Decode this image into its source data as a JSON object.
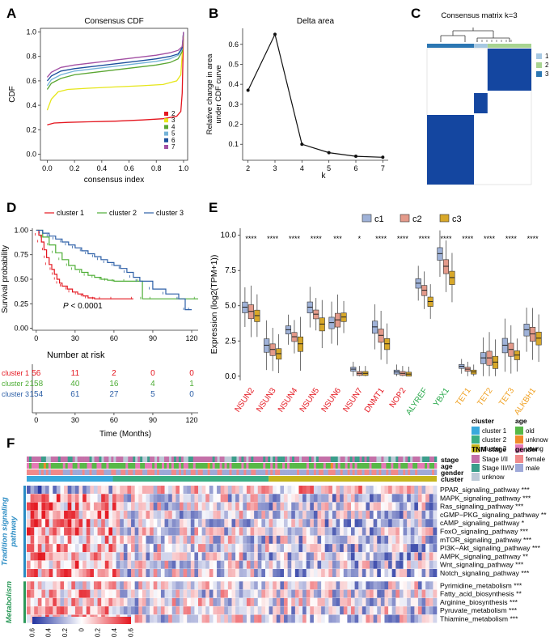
{
  "chart_data": [
    {
      "panel": "A",
      "type": "line",
      "title": "Consensus CDF",
      "xlabel": "consensus index",
      "ylabel": "CDF",
      "xlim": [
        0,
        1
      ],
      "ylim": [
        0,
        1
      ],
      "xticks": [
        "0.0",
        "0.2",
        "0.4",
        "0.6",
        "0.8",
        "1.0"
      ],
      "yticks": [
        "0.0",
        "0.2",
        "0.4",
        "0.6",
        "0.8",
        "1.0"
      ],
      "series": [
        {
          "name": "2",
          "color": "#e4161f",
          "x": [
            0,
            0.05,
            0.15,
            0.3,
            0.5,
            0.7,
            0.85,
            0.95,
            0.98,
            0.99,
            1.0
          ],
          "y": [
            0.24,
            0.255,
            0.26,
            0.265,
            0.27,
            0.28,
            0.29,
            0.31,
            0.35,
            0.5,
            1.0
          ]
        },
        {
          "name": "3",
          "color": "#e6e61a",
          "x": [
            0,
            0.03,
            0.08,
            0.15,
            0.3,
            0.5,
            0.7,
            0.85,
            0.95,
            0.98,
            1.0
          ],
          "y": [
            0.36,
            0.45,
            0.51,
            0.53,
            0.54,
            0.55,
            0.56,
            0.57,
            0.6,
            0.65,
            0.98
          ]
        },
        {
          "name": "4",
          "color": "#5aa632",
          "x": [
            0,
            0.03,
            0.1,
            0.2,
            0.35,
            0.5,
            0.65,
            0.8,
            0.9,
            0.96,
            0.99,
            1.0
          ],
          "y": [
            0.53,
            0.58,
            0.62,
            0.65,
            0.67,
            0.69,
            0.71,
            0.73,
            0.75,
            0.78,
            0.84,
            1.0
          ]
        },
        {
          "name": "5",
          "color": "#74b3d8",
          "x": [
            0,
            0.03,
            0.1,
            0.2,
            0.35,
            0.5,
            0.65,
            0.8,
            0.9,
            0.96,
            0.99,
            1.0
          ],
          "y": [
            0.56,
            0.61,
            0.65,
            0.68,
            0.7,
            0.72,
            0.74,
            0.76,
            0.78,
            0.81,
            0.86,
            1.0
          ]
        },
        {
          "name": "6",
          "color": "#1c4f9c",
          "x": [
            0,
            0.03,
            0.1,
            0.2,
            0.35,
            0.5,
            0.65,
            0.8,
            0.9,
            0.96,
            0.99,
            1.0
          ],
          "y": [
            0.6,
            0.64,
            0.68,
            0.7,
            0.72,
            0.74,
            0.76,
            0.78,
            0.8,
            0.82,
            0.87,
            1.0
          ]
        },
        {
          "name": "7",
          "color": "#a24fa3",
          "x": [
            0,
            0.03,
            0.1,
            0.2,
            0.35,
            0.5,
            0.65,
            0.8,
            0.9,
            0.96,
            0.99,
            1.0
          ],
          "y": [
            0.63,
            0.67,
            0.71,
            0.73,
            0.75,
            0.77,
            0.79,
            0.81,
            0.83,
            0.85,
            0.88,
            1.0
          ]
        }
      ]
    },
    {
      "panel": "B",
      "type": "line",
      "title": "Delta area",
      "xlabel": "k",
      "ylabel_lines": [
        "Relative change in area",
        "under CDF curve"
      ],
      "x": [
        2,
        3,
        4,
        5,
        6,
        7
      ],
      "y": [
        0.37,
        0.65,
        0.1,
        0.058,
        0.04,
        0.035
      ],
      "xlim": [
        1.8,
        7.2
      ],
      "ylim": [
        0.02,
        0.68
      ],
      "xticks": [
        "2",
        "3",
        "4",
        "5",
        "6",
        "7"
      ],
      "yticks": [
        "0.1",
        "0.2",
        "0.3",
        "0.4",
        "0.5",
        "0.6"
      ]
    },
    {
      "panel": "C",
      "type": "heatmap",
      "title": "Consensus matrix k=3",
      "legend": [
        {
          "name": "1",
          "color": "#a6c8e2"
        },
        {
          "name": "2",
          "color": "#a8d491"
        },
        {
          "name": "3",
          "color": "#2b76b2"
        }
      ],
      "block_color": "#1446a0",
      "annotation_bar": [
        {
          "cluster": "3",
          "frac": 0.45
        },
        {
          "cluster": "1",
          "frac": 0.13
        },
        {
          "cluster": "2",
          "frac": 0.42
        }
      ]
    },
    {
      "panel": "D",
      "type": "line",
      "subtype": "kaplan-meier",
      "ylabel": "Survival probability",
      "xlabel": "Time (Months)",
      "xlim": [
        0,
        125
      ],
      "ylim": [
        0,
        1
      ],
      "xticks": [
        "0",
        "30",
        "60",
        "90",
        "120"
      ],
      "yticks": [
        "0.00",
        "0.25",
        "0.50",
        "0.75",
        "1.00"
      ],
      "pvalue_label": "P",
      "pvalue_text": " < 0.0001",
      "series": [
        {
          "name": "cluster 1",
          "color": "#e4161f",
          "x": [
            0,
            2,
            4,
            6,
            8,
            10,
            12,
            14,
            16,
            18,
            20,
            24,
            28,
            32,
            36,
            40,
            45,
            50,
            60,
            75
          ],
          "y": [
            1,
            0.95,
            0.88,
            0.8,
            0.72,
            0.65,
            0.6,
            0.55,
            0.5,
            0.46,
            0.43,
            0.4,
            0.37,
            0.35,
            0.33,
            0.31,
            0.3,
            0.3,
            0.3,
            0.3
          ]
        },
        {
          "name": "cluster 2",
          "color": "#4dad35",
          "x": [
            0,
            5,
            10,
            15,
            20,
            25,
            30,
            35,
            40,
            45,
            50,
            55,
            60,
            70,
            80,
            82,
            90,
            125
          ],
          "y": [
            1,
            0.93,
            0.85,
            0.77,
            0.7,
            0.64,
            0.6,
            0.57,
            0.54,
            0.52,
            0.5,
            0.49,
            0.48,
            0.48,
            0.48,
            0.3,
            0.3,
            0.3
          ]
        },
        {
          "name": "cluster 3",
          "color": "#2c5fa7",
          "x": [
            0,
            5,
            10,
            15,
            20,
            25,
            30,
            35,
            40,
            45,
            50,
            55,
            60,
            65,
            70,
            75,
            80,
            90,
            100,
            110,
            115,
            120
          ],
          "y": [
            1,
            0.97,
            0.94,
            0.91,
            0.88,
            0.85,
            0.82,
            0.79,
            0.76,
            0.73,
            0.7,
            0.67,
            0.64,
            0.61,
            0.57,
            0.52,
            0.48,
            0.4,
            0.35,
            0.3,
            0.19,
            0.19
          ]
        }
      ],
      "risk_table": {
        "title": "Number at risk",
        "times": [
          "0",
          "30",
          "60",
          "90",
          "120"
        ],
        "rows": [
          {
            "name": "cluster 1",
            "color": "#e4161f",
            "values": [
              "56",
              "11",
              "2",
              "0",
              "0"
            ]
          },
          {
            "name": "cluster 2",
            "color": "#4dad35",
            "values": [
              "158",
              "40",
              "16",
              "4",
              "1"
            ]
          },
          {
            "name": "cluster 3",
            "color": "#2c5fa7",
            "values": [
              "154",
              "61",
              "27",
              "5",
              "0"
            ]
          }
        ]
      }
    },
    {
      "panel": "E",
      "type": "box",
      "ylabel": "Expression (log2(TPM+1))",
      "ylim": [
        0,
        10.5
      ],
      "yticks": [
        "0.0",
        "2.5",
        "5.0",
        "7.5",
        "10.0"
      ],
      "legend": [
        {
          "name": "c1",
          "color": "#9fb2d8"
        },
        {
          "name": "c2",
          "color": "#e49a8a"
        },
        {
          "name": "c3",
          "color": "#d8a829"
        }
      ],
      "genes": [
        {
          "name": "NSUN2",
          "color": "#e4161f",
          "sig": "****",
          "med": [
            4.9,
            4.6,
            4.3
          ]
        },
        {
          "name": "NSUN3",
          "color": "#e4161f",
          "sig": "****",
          "med": [
            2.2,
            1.9,
            1.6
          ]
        },
        {
          "name": "NSUN4",
          "color": "#e4161f",
          "sig": "****",
          "med": [
            3.3,
            2.8,
            2.3
          ]
        },
        {
          "name": "NSUN5",
          "color": "#e4161f",
          "sig": "****",
          "med": [
            4.9,
            4.4,
            3.7
          ]
        },
        {
          "name": "NSUN6",
          "color": "#e4161f",
          "sig": "***",
          "med": [
            3.8,
            4.0,
            4.2
          ]
        },
        {
          "name": "NSUN7",
          "color": "#e4161f",
          "sig": "*",
          "med": [
            0.5,
            0.2,
            0.2
          ]
        },
        {
          "name": "DNMT1",
          "color": "#e4161f",
          "sig": "****",
          "med": [
            3.5,
            2.9,
            2.3
          ]
        },
        {
          "name": "NOP2",
          "color": "#e4161f",
          "sig": "****",
          "med": [
            0.3,
            0.2,
            0.15
          ]
        },
        {
          "name": "ALYREF",
          "color": "#28a84a",
          "sig": "****",
          "med": [
            6.6,
            6.1,
            5.3
          ]
        },
        {
          "name": "YBX1",
          "color": "#28a84a",
          "sig": "****",
          "med": [
            8.7,
            7.8,
            7.0
          ]
        },
        {
          "name": "TET1",
          "color": "#f0a020",
          "sig": "****",
          "med": [
            0.7,
            0.5,
            0.3
          ]
        },
        {
          "name": "TET2",
          "color": "#f0a020",
          "sig": "****",
          "med": [
            1.3,
            1.3,
            1.0
          ]
        },
        {
          "name": "TET3",
          "color": "#f0a020",
          "sig": "****",
          "med": [
            2.2,
            1.9,
            1.5
          ]
        },
        {
          "name": "ALKBH1",
          "color": "#f0a020",
          "sig": "****",
          "med": [
            3.3,
            3.0,
            2.7
          ]
        }
      ]
    },
    {
      "panel": "F",
      "type": "heatmap",
      "annotation_tracks": [
        "stage",
        "age",
        "gender",
        "cluster"
      ],
      "group_legend": [
        {
          "title": "cluster",
          "items": [
            {
              "name": "cluster 1",
              "color": "#38a9dc"
            },
            {
              "name": "cluster 2",
              "color": "#3aae83"
            },
            {
              "name": "cluster 3",
              "color": "#c5b51c"
            }
          ]
        },
        {
          "title": "age",
          "items": [
            {
              "name": "old",
              "color": "#57b847"
            },
            {
              "name": "unknow",
              "color": "#f08a2b"
            },
            {
              "name": "young",
              "color": "#e579b6"
            }
          ]
        },
        {
          "title": "TNM stage",
          "items": [
            {
              "name": "Stage I/II",
              "color": "#c470a8"
            },
            {
              "name": "Stage III/IV",
              "color": "#3a9e8a"
            },
            {
              "name": "unknow",
              "color": "#bdc9d6"
            }
          ]
        },
        {
          "title": "gender",
          "items": [
            {
              "name": "female",
              "color": "#f08a8a"
            },
            {
              "name": "male",
              "color": "#9fa9d8"
            }
          ]
        }
      ],
      "groups": [
        {
          "title": "Tradition signaling pathway",
          "title_lines": [
            "Tradition signaling",
            "pathway"
          ],
          "color": "#2a8cc4",
          "rows": [
            "PPAR_signaling_pathway ***",
            "MAPK_signaling_pathway ***",
            "Ras_signaling_pathway ***",
            "cGMP−PKG_signaling_pathway **",
            "cAMP_signaling_pathway *",
            "FoxO_signaling_pathway ***",
            "mTOR_signaling_pathway ***",
            "PI3K−Akt_signaling_pathway ***",
            "AMPK_signaling_pathway **",
            "Wnt_signaling_pathway ***",
            "Notch_signaling_pathway ***"
          ]
        },
        {
          "title": "Metabolism",
          "title_lines": [
            "Metabolism"
          ],
          "color": "#2d9a5a",
          "rows": [
            "Pyrimidine_metabolism ***",
            "Fatty_acid_biosynthesis **",
            "Arginine_biosynthesis ***",
            "Pyruvate_metabolism ***",
            "Thiamine_metabolism ***"
          ]
        }
      ],
      "colorbar": {
        "ticks": [
          "−0.6",
          "−0.4",
          "−0.2",
          "0",
          "0.2",
          "0.4",
          "0.6"
        ],
        "low": "#2233a0",
        "mid": "#ffffff",
        "high": "#e4161f"
      }
    }
  ],
  "panel_labels": [
    "A",
    "B",
    "C",
    "D",
    "E",
    "F"
  ]
}
